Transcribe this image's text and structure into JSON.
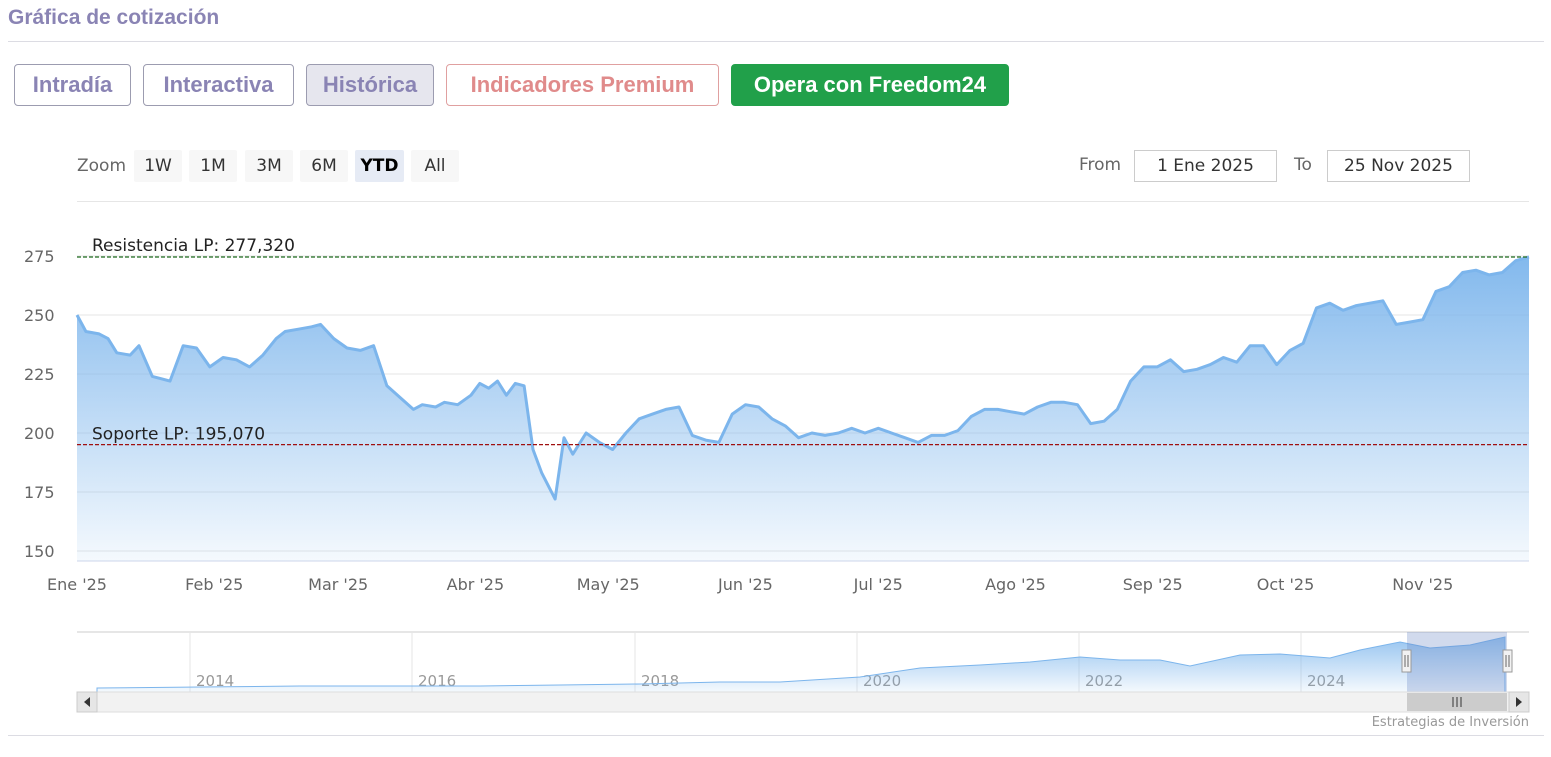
{
  "page": {
    "title": "Gráfica de cotización",
    "credit": "Estrategias de Inversión"
  },
  "tabs": [
    {
      "label": "Intradía",
      "variant": "default"
    },
    {
      "label": "Interactiva",
      "variant": "default"
    },
    {
      "label": "Histórica",
      "variant": "active"
    },
    {
      "label": "Indicadores Premium",
      "variant": "premium"
    },
    {
      "label": "Opera con Freedom24",
      "variant": "cta"
    }
  ],
  "zoom": {
    "label": "Zoom",
    "buttons": [
      "1W",
      "1M",
      "3M",
      "6M",
      "YTD",
      "All"
    ],
    "selected": "YTD"
  },
  "range": {
    "from_label": "From",
    "from_value": "1 Ene 2025",
    "to_label": "To",
    "to_value": "25 Nov 2025"
  },
  "colors": {
    "line": "#7cb5ec",
    "resistance": "#1e6b1e",
    "support": "#a01010",
    "title": "#8a84b4",
    "cta": "#21a04a"
  },
  "chart_data": {
    "type": "area",
    "ylim": [
      150,
      275
    ],
    "y_ticks": [
      150,
      175,
      200,
      225,
      250,
      275
    ],
    "x_ticks": [
      {
        "label": "Ene '25",
        "x": "2025-01-01"
      },
      {
        "label": "Feb '25",
        "x": "2025-02-01"
      },
      {
        "label": "Mar '25",
        "x": "2025-03-01"
      },
      {
        "label": "Abr '25",
        "x": "2025-04-01"
      },
      {
        "label": "May '25",
        "x": "2025-05-01"
      },
      {
        "label": "Jun '25",
        "x": "2025-06-01"
      },
      {
        "label": "Jul '25",
        "x": "2025-07-01"
      },
      {
        "label": "Ago '25",
        "x": "2025-08-01"
      },
      {
        "label": "Sep '25",
        "x": "2025-09-01"
      },
      {
        "label": "Oct '25",
        "x": "2025-10-01"
      },
      {
        "label": "Nov '25",
        "x": "2025-11-01"
      }
    ],
    "lines": [
      {
        "label": "Resistencia LP: 277,320",
        "value": 277.32,
        "color": "#1e6b1e"
      },
      {
        "label": "Soporte LP: 195,070",
        "value": 195.07,
        "color": "#a01010"
      }
    ],
    "series": [
      {
        "x": [
          "2025-01-01",
          "2025-01-03",
          "2025-01-06",
          "2025-01-08",
          "2025-01-10",
          "2025-01-13",
          "2025-01-15",
          "2025-01-18",
          "2025-01-20",
          "2025-01-22",
          "2025-01-25",
          "2025-01-28",
          "2025-01-31",
          "2025-02-03",
          "2025-02-06",
          "2025-02-09",
          "2025-02-12",
          "2025-02-15",
          "2025-02-17",
          "2025-02-20",
          "2025-02-23",
          "2025-02-25",
          "2025-02-28",
          "2025-03-03",
          "2025-03-06",
          "2025-03-09",
          "2025-03-12",
          "2025-03-15",
          "2025-03-18",
          "2025-03-20",
          "2025-03-23",
          "2025-03-25",
          "2025-03-28",
          "2025-03-31",
          "2025-04-02",
          "2025-04-04",
          "2025-04-06",
          "2025-04-08",
          "2025-04-10",
          "2025-04-12",
          "2025-04-14",
          "2025-04-16",
          "2025-04-19",
          "2025-04-21",
          "2025-04-23",
          "2025-04-26",
          "2025-04-29",
          "2025-05-02",
          "2025-05-05",
          "2025-05-08",
          "2025-05-11",
          "2025-05-14",
          "2025-05-17",
          "2025-05-20",
          "2025-05-23",
          "2025-05-26",
          "2025-05-29",
          "2025-06-01",
          "2025-06-04",
          "2025-06-07",
          "2025-06-10",
          "2025-06-13",
          "2025-06-16",
          "2025-06-19",
          "2025-06-22",
          "2025-06-25",
          "2025-06-28",
          "2025-07-01",
          "2025-07-04",
          "2025-07-07",
          "2025-07-10",
          "2025-07-13",
          "2025-07-16",
          "2025-07-19",
          "2025-07-22",
          "2025-07-25",
          "2025-07-28",
          "2025-07-31",
          "2025-08-03",
          "2025-08-06",
          "2025-08-09",
          "2025-08-12",
          "2025-08-15",
          "2025-08-18",
          "2025-08-21",
          "2025-08-24",
          "2025-08-27",
          "2025-08-30",
          "2025-09-02",
          "2025-09-05",
          "2025-09-08",
          "2025-09-11",
          "2025-09-14",
          "2025-09-17",
          "2025-09-20",
          "2025-09-23",
          "2025-09-26",
          "2025-09-29",
          "2025-10-02",
          "2025-10-05",
          "2025-10-08",
          "2025-10-11",
          "2025-10-14",
          "2025-10-17",
          "2025-10-20",
          "2025-10-23",
          "2025-10-26",
          "2025-10-29",
          "2025-11-01",
          "2025-11-04",
          "2025-11-07",
          "2025-11-10",
          "2025-11-13",
          "2025-11-16",
          "2025-11-19",
          "2025-11-22",
          "2025-11-25"
        ],
        "values": [
          250,
          243,
          242,
          240,
          234,
          233,
          237,
          224,
          223,
          222,
          237,
          236,
          228,
          232,
          231,
          228,
          233,
          240,
          243,
          244,
          245,
          246,
          240,
          236,
          235,
          237,
          220,
          215,
          210,
          212,
          211,
          213,
          212,
          216,
          221,
          219,
          222,
          216,
          221,
          220,
          193,
          183,
          172,
          198,
          191,
          200,
          196,
          193,
          200,
          206,
          208,
          210,
          211,
          199,
          197,
          196,
          208,
          212,
          211,
          206,
          203,
          198,
          200,
          199,
          200,
          202,
          200,
          202,
          200,
          198,
          196,
          199,
          199,
          201,
          207,
          210,
          210,
          209,
          208,
          211,
          213,
          213,
          212,
          204,
          205,
          210,
          222,
          228,
          228,
          231,
          226,
          227,
          229,
          232,
          230,
          237,
          237,
          229,
          235,
          238,
          253,
          255,
          252,
          254,
          255,
          256,
          246,
          247,
          248,
          260,
          262,
          268,
          269,
          267,
          268,
          273,
          277
        ]
      }
    ],
    "navigator": {
      "x_ticks": [
        "2014",
        "2016",
        "2018",
        "2020",
        "2022",
        "2024"
      ]
    }
  }
}
